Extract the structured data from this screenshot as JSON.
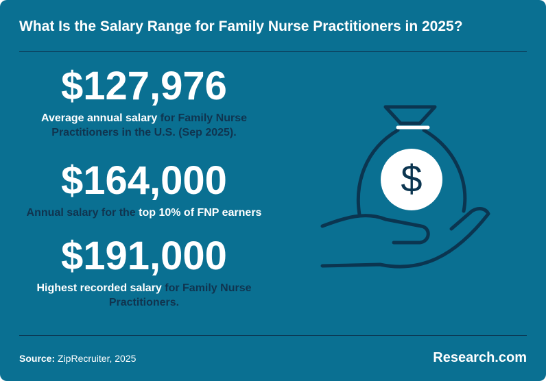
{
  "title": "What Is the Salary Range for Family Nurse Practitioners in 2025?",
  "stats": [
    {
      "value": "$127,976",
      "desc_white": "Average annual salary",
      "desc_dark": " for Family Nurse Practitioners in the U.S. (Sep 2025)."
    },
    {
      "value": "$164,000",
      "desc_dark": "Annual salary for the ",
      "desc_white": "top 10% of FNP earners"
    },
    {
      "value": "$191,000",
      "desc_white": "Highest recorded salary",
      "desc_dark": " for Family Nurse Practitioners."
    }
  ],
  "illustration": {
    "icon": "money-bag-in-hand-icon",
    "glyph": "$",
    "stroke_color": "#0b3550",
    "coin_color": "#ffffff"
  },
  "footer": {
    "source_label": "Source:",
    "source_text": " ZipRecruiter, 2025",
    "brand": "Research.com"
  },
  "colors": {
    "background": "#0a7092",
    "dark_text": "#10344f",
    "light_text": "#ffffff"
  }
}
